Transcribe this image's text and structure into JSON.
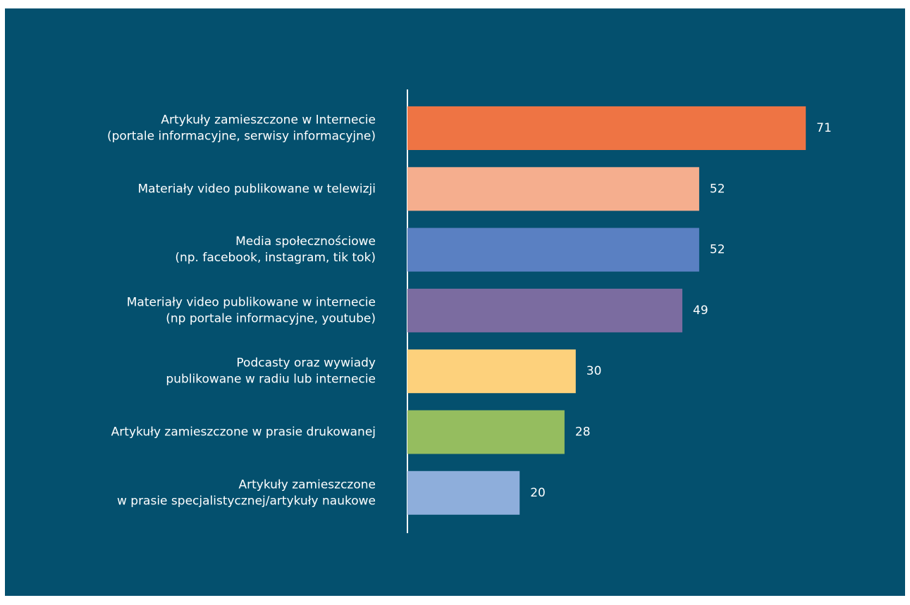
{
  "chart_data": {
    "type": "bar",
    "orientation": "horizontal",
    "categories": [
      "Artykuły zamieszczone w Internecie\n(portale informacyjne, serwisy informacyjne)",
      "Materiały video publikowane w telewizji",
      "Media społecznościowe\n(np. facebook, instagram, tik tok)",
      "Materiały video publikowane w internecie\n(np portale informacyjne, youtube)",
      "Podcasty oraz wywiady\npublikowane w radiu lub internecie",
      "Artykuły zamieszczone w prasie drukowanej",
      "Artykuły zamieszczone\nw prasie specjalistycznej/artykuły naukowe"
    ],
    "values": [
      71,
      52,
      52,
      49,
      30,
      28,
      20
    ],
    "colors": [
      "#ee7444",
      "#f5ae8e",
      "#5a80c2",
      "#7b6ca0",
      "#fdd17c",
      "#95bd5f",
      "#8eaedb"
    ]
  }
}
